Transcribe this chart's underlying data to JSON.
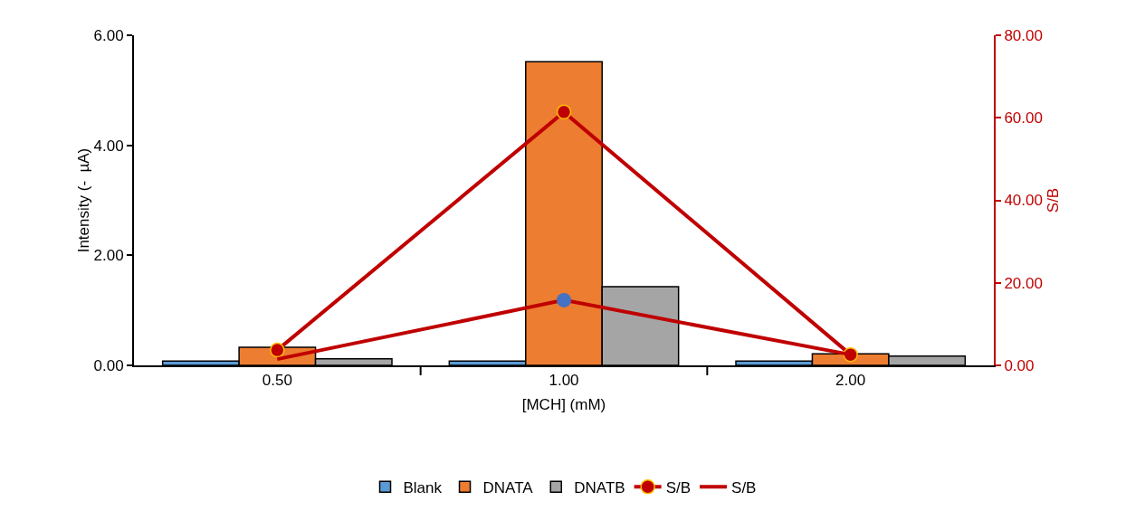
{
  "chart_data": {
    "type": "bar",
    "xlabel": "[MCH] (mM)",
    "ylabel": "Intensity (-  µA)",
    "y2label": "S/B",
    "categories": [
      "0.50",
      "1.00",
      "2.00"
    ],
    "series": [
      {
        "name": "Blank",
        "color": "#5b9bd5",
        "values": [
          0.08,
          0.08,
          0.08
        ]
      },
      {
        "name": "DNATA",
        "color": "#ed7d31",
        "values": [
          0.33,
          5.52,
          0.21
        ]
      },
      {
        "name": "DNATB",
        "color": "#a5a5a5",
        "values": [
          0.12,
          1.43,
          0.17
        ]
      },
      {
        "name": "S/B",
        "type": "line",
        "axis": "y2",
        "color": "#c00000",
        "marker": "circle",
        "values": [
          3.7,
          61.4,
          2.6
        ]
      },
      {
        "name": "S/B",
        "type": "line",
        "axis": "y2",
        "color": "#c00000",
        "marker": "none",
        "values": [
          1.5,
          15.8,
          2.6
        ]
      },
      {
        "type": "scatter",
        "axis": "y2",
        "color": "#4472c4",
        "marker": "circle",
        "values": [
          null,
          15.8,
          null
        ]
      }
    ],
    "ylim": [
      0,
      6
    ],
    "yticks": [
      {
        "value": 0,
        "label": "0.00"
      },
      {
        "value": 2,
        "label": "2.00"
      },
      {
        "value": 4,
        "label": "4.00"
      },
      {
        "value": 6,
        "label": "6.00"
      }
    ],
    "y2lim": [
      0,
      80
    ],
    "y2ticks": [
      {
        "value": 0,
        "label": "0.00"
      },
      {
        "value": 20,
        "label": "20.00"
      },
      {
        "value": 40,
        "label": "40.00"
      },
      {
        "value": 60,
        "label": "60.00"
      },
      {
        "value": 80,
        "label": "80.00"
      }
    ],
    "grid": false,
    "legend": "bottom"
  }
}
